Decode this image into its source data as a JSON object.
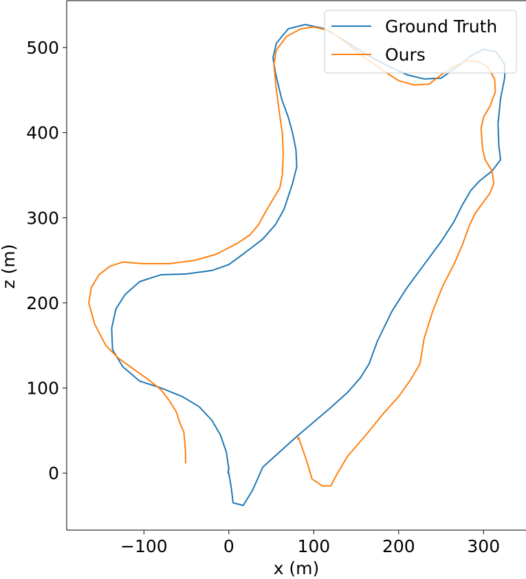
{
  "chart_data": {
    "type": "line",
    "xlabel": "x (m)",
    "ylabel": "z (m)",
    "xlim": [
      -191,
      350
    ],
    "ylim": [
      -67,
      555
    ],
    "x_ticks": [
      -100,
      0,
      100,
      200,
      300
    ],
    "y_ticks": [
      0,
      100,
      200,
      300,
      400,
      500
    ],
    "x_tick_labels": [
      "−100",
      "0",
      "100",
      "200",
      "300"
    ],
    "y_tick_labels": [
      "0",
      "100",
      "200",
      "300",
      "400",
      "500"
    ],
    "grid": false,
    "legend_position": "top-right",
    "series": [
      {
        "name": "Ground Truth",
        "color": "#1f77b4",
        "points": [
          [
            0,
            7
          ],
          [
            -1,
            0
          ],
          [
            0,
            5
          ],
          [
            -3,
            25
          ],
          [
            -10,
            45
          ],
          [
            -20,
            62
          ],
          [
            -35,
            78
          ],
          [
            -55,
            90
          ],
          [
            -80,
            100
          ],
          [
            -105,
            108
          ],
          [
            -125,
            125
          ],
          [
            -137,
            145
          ],
          [
            -138,
            170
          ],
          [
            -133,
            193
          ],
          [
            -122,
            210
          ],
          [
            -105,
            225
          ],
          [
            -80,
            233
          ],
          [
            -50,
            234
          ],
          [
            -20,
            238
          ],
          [
            0,
            245
          ],
          [
            15,
            256
          ],
          [
            27,
            265
          ],
          [
            40,
            275
          ],
          [
            55,
            292
          ],
          [
            65,
            310
          ],
          [
            75,
            340
          ],
          [
            80,
            360
          ],
          [
            79,
            380
          ],
          [
            75,
            400
          ],
          [
            70,
            418
          ],
          [
            62,
            440
          ],
          [
            55,
            470
          ],
          [
            52,
            488
          ],
          [
            56,
            505
          ],
          [
            70,
            522
          ],
          [
            90,
            527
          ],
          [
            113,
            522
          ],
          [
            138,
            507
          ],
          [
            165,
            490
          ],
          [
            190,
            477
          ],
          [
            210,
            468
          ],
          [
            230,
            463
          ],
          [
            250,
            464
          ],
          [
            270,
            478
          ],
          [
            285,
            490
          ],
          [
            300,
            498
          ],
          [
            315,
            495
          ],
          [
            325,
            480
          ],
          [
            325,
            465
          ],
          [
            320,
            440
          ],
          [
            317,
            410
          ],
          [
            318,
            385
          ],
          [
            320,
            368
          ],
          [
            310,
            355
          ],
          [
            295,
            343
          ],
          [
            285,
            332
          ],
          [
            275,
            315
          ],
          [
            265,
            295
          ],
          [
            250,
            272
          ],
          [
            230,
            245
          ],
          [
            210,
            218
          ],
          [
            192,
            190
          ],
          [
            175,
            155
          ],
          [
            165,
            128
          ],
          [
            155,
            112
          ],
          [
            140,
            95
          ],
          [
            120,
            77
          ],
          [
            100,
            60
          ],
          [
            80,
            43
          ],
          [
            60,
            25
          ],
          [
            40,
            7
          ],
          [
            28,
            -20
          ],
          [
            17,
            -38
          ],
          [
            5,
            -35
          ],
          [
            3,
            -18
          ],
          [
            0,
            0
          ]
        ]
      },
      {
        "name": "Ours",
        "color": "#ff7f0e",
        "points": [
          [
            -51,
            12
          ],
          [
            -51,
            25
          ],
          [
            -53,
            48
          ],
          [
            -58,
            60
          ],
          [
            -62,
            72
          ],
          [
            -70,
            85
          ],
          [
            -80,
            98
          ],
          [
            -95,
            110
          ],
          [
            -112,
            122
          ],
          [
            -130,
            135
          ],
          [
            -145,
            150
          ],
          [
            -158,
            175
          ],
          [
            -165,
            200
          ],
          [
            -162,
            218
          ],
          [
            -153,
            233
          ],
          [
            -140,
            243
          ],
          [
            -125,
            248
          ],
          [
            -100,
            246
          ],
          [
            -70,
            246
          ],
          [
            -40,
            250
          ],
          [
            -15,
            257
          ],
          [
            10,
            270
          ],
          [
            25,
            280
          ],
          [
            35,
            292
          ],
          [
            45,
            310
          ],
          [
            60,
            335
          ],
          [
            63,
            350
          ],
          [
            64,
            375
          ],
          [
            63,
            400
          ],
          [
            60,
            420
          ],
          [
            56,
            450
          ],
          [
            53,
            480
          ],
          [
            56,
            497
          ],
          [
            68,
            513
          ],
          [
            85,
            522
          ],
          [
            100,
            524
          ],
          [
            118,
            520
          ],
          [
            140,
            504
          ],
          [
            160,
            488
          ],
          [
            180,
            474
          ],
          [
            200,
            461
          ],
          [
            218,
            456
          ],
          [
            236,
            457
          ],
          [
            250,
            468
          ],
          [
            265,
            478
          ],
          [
            280,
            484
          ],
          [
            293,
            484
          ],
          [
            305,
            477
          ],
          [
            313,
            463
          ],
          [
            314,
            448
          ],
          [
            308,
            432
          ],
          [
            300,
            418
          ],
          [
            297,
            405
          ],
          [
            298,
            392
          ],
          [
            299,
            380
          ],
          [
            302,
            368
          ],
          [
            310,
            355
          ],
          [
            312,
            340
          ],
          [
            307,
            328
          ],
          [
            298,
            316
          ],
          [
            290,
            305
          ],
          [
            283,
            290
          ],
          [
            275,
            268
          ],
          [
            265,
            245
          ],
          [
            252,
            220
          ],
          [
            240,
            190
          ],
          [
            230,
            158
          ],
          [
            225,
            128
          ],
          [
            213,
            108
          ],
          [
            200,
            90
          ],
          [
            182,
            70
          ],
          [
            160,
            43
          ],
          [
            140,
            20
          ],
          [
            128,
            0
          ],
          [
            120,
            -15
          ],
          [
            110,
            -15
          ],
          [
            98,
            -7
          ],
          [
            93,
            10
          ],
          [
            88,
            25
          ],
          [
            82,
            42
          ],
          [
            81,
            40
          ]
        ]
      }
    ]
  }
}
